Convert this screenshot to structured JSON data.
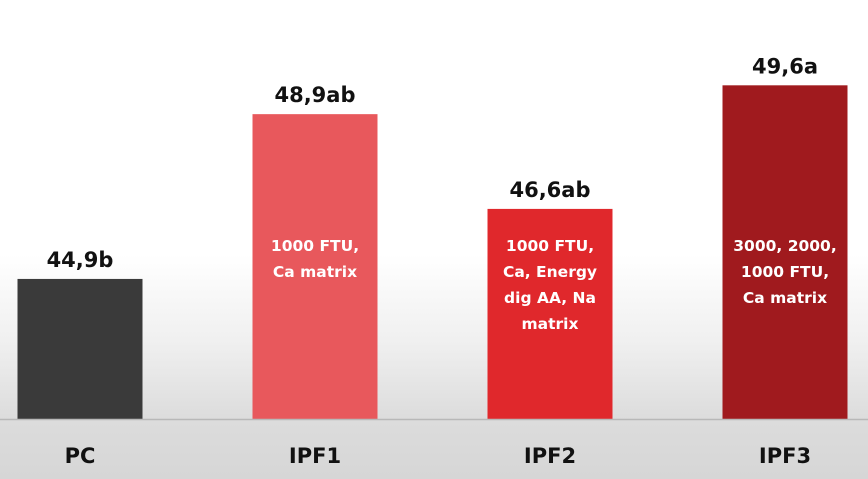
{
  "chart_data": {
    "type": "bar",
    "categories": [
      "PC",
      "IPF1",
      "IPF2",
      "IPF3"
    ],
    "values": [
      44.9,
      48.9,
      46.6,
      49.6
    ],
    "value_labels": [
      "44,9b",
      "48,9ab",
      "46,6ab",
      "49,6a"
    ],
    "bar_notes": [
      [],
      [
        "1000 FTU,",
        "Ca matrix"
      ],
      [
        "1000 FTU,",
        "Ca, Energy",
        "dig AA, Na",
        "matrix"
      ],
      [
        "3000, 2000,",
        "1000 FTU,",
        "Ca matrix"
      ]
    ],
    "bar_colors": [
      "#3a3a3a",
      "#e8585c",
      "#e0282c",
      "#a01a1e"
    ],
    "axis_color": "#b8b8b8",
    "ylim": [
      41.5,
      50.7
    ],
    "grid": false,
    "legend": "none"
  }
}
